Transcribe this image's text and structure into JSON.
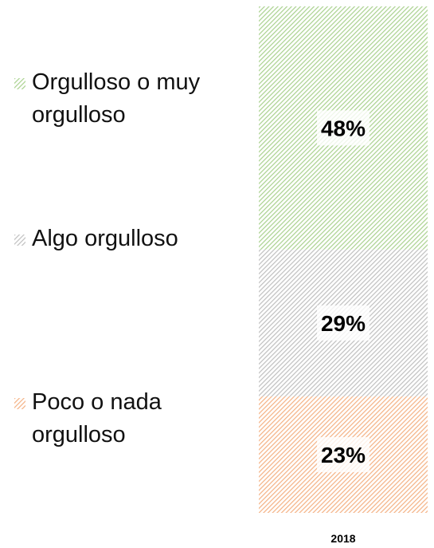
{
  "chart_data": {
    "type": "stacked_bar",
    "categories": [
      "2018"
    ],
    "series": [
      {
        "name": "Orgulloso o muy orgulloso",
        "color": "#a9d18e",
        "values": [
          48
        ],
        "value_labels": [
          "48%"
        ]
      },
      {
        "name": "Algo orgulloso",
        "color": "#bfbfbf",
        "values": [
          29
        ],
        "value_labels": [
          "29%"
        ]
      },
      {
        "name": "Poco o nada orgulloso",
        "color": "#f4b183",
        "values": [
          23
        ],
        "value_labels": [
          "23%"
        ]
      }
    ],
    "ylim": [
      0,
      100
    ]
  }
}
